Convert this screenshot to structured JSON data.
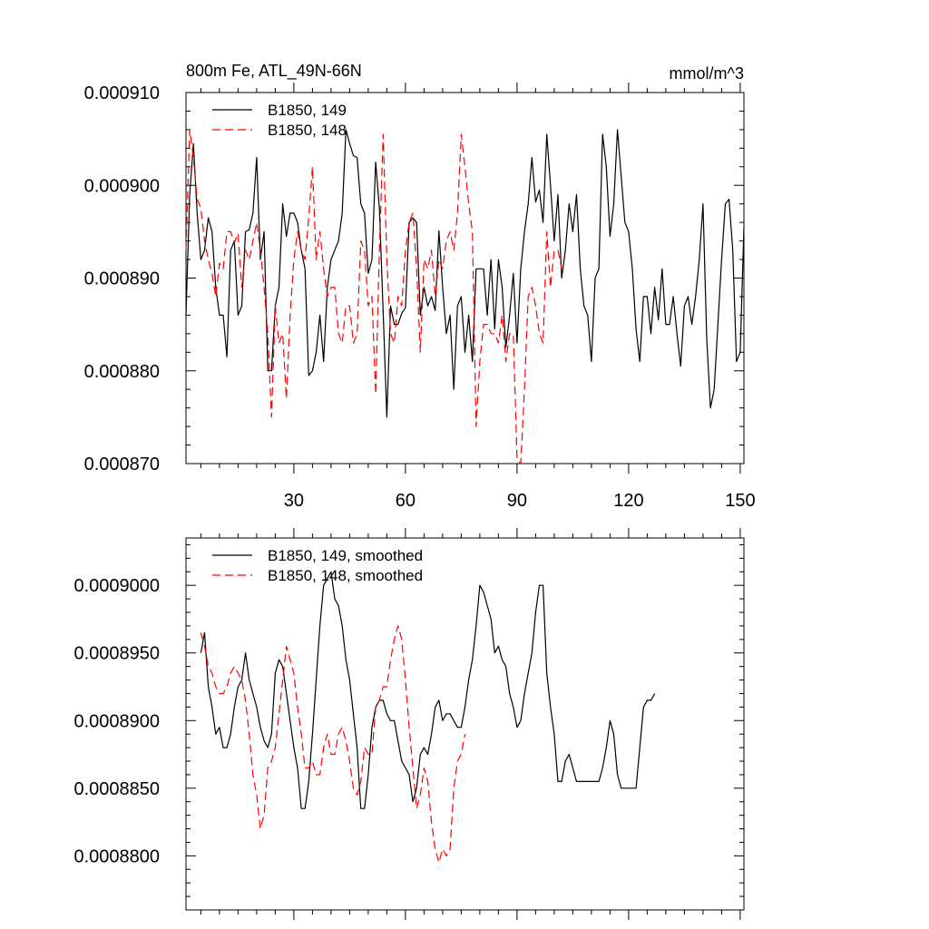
{
  "colors": {
    "background": "#ffffff",
    "axis": "#000000",
    "series_black": "#000000",
    "series_red": "#ff0000"
  },
  "chart_data": [
    {
      "type": "line",
      "title": "800m Fe, ATL_49N-66N",
      "units": "mmol/m^3",
      "xlim": [
        1,
        151
      ],
      "ylim": [
        0.00087,
        0.00091
      ],
      "x_ticks": [
        30,
        60,
        90,
        120,
        150
      ],
      "x_tick_labels": [
        "30",
        "60",
        "90",
        "120",
        "150"
      ],
      "y_ticks": [
        0.00087,
        0.00088,
        0.00089,
        0.0009,
        0.00091
      ],
      "y_tick_labels": [
        "0.000870",
        "0.000880",
        "0.000890",
        "0.000900",
        "0.000910"
      ],
      "legend_position": "top-left",
      "series": [
        {
          "name": "B1850, 149",
          "color": "#000000",
          "dash": "solid",
          "x_start": 1,
          "values": [
            0.000886,
            0.000899,
            0.0009045,
            0.000897,
            0.000892,
            0.000893,
            0.0008965,
            0.000895,
            0.000889,
            0.000886,
            0.000886,
            0.0008815,
            0.000893,
            0.000894,
            0.000886,
            0.000887,
            0.000895,
            0.0008952,
            0.000897,
            0.000903,
            0.000892,
            0.000895,
            0.00088,
            0.00088,
            0.000887,
            0.000889,
            0.000898,
            0.0008945,
            0.000897,
            0.000897,
            0.000896,
            0.000893,
            0.000891,
            0.0008795,
            0.00088,
            0.000882,
            0.000886,
            0.000881,
            0.000889,
            0.000892,
            0.000893,
            0.000894,
            0.000897,
            0.000906,
            0.0009045,
            0.0009032,
            0.000903,
            0.000898,
            0.000897,
            0.0008905,
            0.000892,
            0.0009025,
            0.0008975,
            0.0008865,
            0.000875,
            0.000887,
            0.000885,
            0.000885,
            0.0008862,
            0.0008868,
            0.000896,
            0.0008965,
            0.000896,
            0.000886,
            0.000889,
            0.000887,
            0.000888,
            0.0008865,
            0.0008951,
            0.000889,
            0.000884,
            0.000886,
            0.000878,
            0.000887,
            0.000888,
            0.000882,
            0.000886,
            0.000881,
            0.000891,
            0.000891,
            0.000891,
            0.000886,
            0.000892,
            0.0008845,
            0.000892,
            0.000889,
            0.0008825,
            0.000886,
            0.0008905,
            0.000883,
            0.000891,
            0.000895,
            0.000898,
            0.000903,
            0.0008982,
            0.0008995,
            0.000896,
            0.0009055,
            0.0009,
            0.000894,
            0.000899,
            0.00089,
            0.000893,
            0.000898,
            0.000895,
            0.000899,
            0.000891,
            0.000887,
            0.000886,
            0.000881,
            0.00089,
            0.000891,
            0.0009055,
            0.000902,
            0.0008945,
            0.000898,
            0.000906,
            0.000901,
            0.000896,
            0.000895,
            0.000891,
            0.0008845,
            0.000881,
            0.000888,
            0.000888,
            0.000884,
            0.000889,
            0.0008855,
            0.000891,
            0.000885,
            0.000885,
            0.000888,
            0.000884,
            0.0008805,
            0.000887,
            0.000888,
            0.000885,
            0.000888,
            0.000892,
            0.000898,
            0.0008835,
            0.000876,
            0.000878,
            0.000885,
            0.000892,
            0.000898,
            0.0008985,
            0.000893,
            0.000881,
            0.000882,
            0.0008955
          ]
        },
        {
          "name": "B1850, 148",
          "color": "#ff0000",
          "dash": "dashed",
          "x_start": 1,
          "values": [
            0.000893,
            0.000906,
            0.000903,
            0.0008985,
            0.0008975,
            0.000894,
            0.000892,
            0.0008905,
            0.000888,
            0.0008916,
            0.000891,
            0.000895,
            0.000895,
            0.0008938,
            0.0008948,
            0.000889,
            0.000893,
            0.000892,
            0.000894,
            0.000896,
            0.000893,
            0.000889,
            0.000884,
            0.000875,
            0.000887,
            0.000883,
            0.000884,
            0.000877,
            0.000886,
            0.000892,
            0.000895,
            0.000893,
            0.000892,
            0.0008965,
            0.000902,
            0.000892,
            0.000895,
            0.000891,
            0.000888,
            0.000889,
            0.000889,
            0.000884,
            0.000883,
            0.000887,
            0.000887,
            0.000883,
            0.000884,
            0.000894,
            0.000893,
            0.000887,
            0.000888,
            0.0008775,
            0.000893,
            0.0009055,
            0.000892,
            0.000884,
            0.000883,
            0.000888,
            0.000887,
            0.000893,
            0.000896,
            0.000897,
            0.000891,
            0.000882,
            0.000892,
            0.000891,
            0.000893,
            0.000888,
            0.000892,
            0.000891,
            0.000894,
            0.000895,
            0.000893,
            0.000897,
            0.0009055,
            0.000902,
            0.000898,
            0.000895,
            0.000874,
            0.000881,
            0.000885,
            0.000885,
            0.000884,
            0.000884,
            0.000883,
            0.000886,
            0.000881,
            0.000884,
            0.000884,
            0.0008705,
            0.00087,
            0.000878,
            0.000888,
            0.000889,
            0.000887,
            0.000884,
            0.000883,
            0.000895,
            0.000889,
            0.000893,
            0.000893,
            0.000891
          ]
        }
      ]
    },
    {
      "type": "line",
      "xlim": [
        1,
        151
      ],
      "ylim": [
        0.000876,
        0.0009035
      ],
      "x_ticks": [
        30,
        60,
        90,
        120,
        150
      ],
      "y_ticks": [
        0.00088,
        0.000885,
        0.00089,
        0.000895,
        0.0009
      ],
      "y_tick_labels": [
        "0.0008800",
        "0.0008850",
        "0.0008900",
        "0.0008950",
        "0.0009000"
      ],
      "legend_position": "top-left",
      "series": [
        {
          "name": "B1850, 149, smoothed",
          "color": "#000000",
          "dash": "solid",
          "x_start": 5,
          "values": [
            0.000895,
            0.0008965,
            0.0008925,
            0.000891,
            0.000889,
            0.0008895,
            0.000888,
            0.000888,
            0.000889,
            0.000891,
            0.0008925,
            0.000893,
            0.000895,
            0.000893,
            0.000892,
            0.000891,
            0.0008895,
            0.0008885,
            0.000888,
            0.000889,
            0.0008935,
            0.0008945,
            0.000894,
            0.000892,
            0.00089,
            0.000888,
            0.0008865,
            0.0008835,
            0.0008835,
            0.0008855,
            0.000889,
            0.000893,
            0.000897,
            0.0009,
            0.0009005,
            0.000901,
            0.000899,
            0.0008985,
            0.000897,
            0.0008945,
            0.000893,
            0.0008905,
            0.000888,
            0.0008835,
            0.0008835,
            0.000886,
            0.0008895,
            0.000891,
            0.0008915,
            0.0008915,
            0.0008905,
            0.00089,
            0.00089,
            0.0008885,
            0.000887,
            0.0008865,
            0.000886,
            0.000884,
            0.000885,
            0.0008875,
            0.000888,
            0.0008875,
            0.000889,
            0.000891,
            0.0008915,
            0.00089,
            0.0008905,
            0.0008905,
            0.00089,
            0.0008895,
            0.0008895,
            0.000891,
            0.000893,
            0.0008945,
            0.000897,
            0.0009,
            0.0008995,
            0.0008985,
            0.0008975,
            0.000895,
            0.0008955,
            0.0008945,
            0.000894,
            0.000892,
            0.000891,
            0.0008895,
            0.00089,
            0.000892,
            0.0008935,
            0.000895,
            0.000898,
            0.0009,
            0.0009,
            0.0008935,
            0.000891,
            0.000889,
            0.0008855,
            0.0008855,
            0.000887,
            0.0008875,
            0.0008865,
            0.0008855,
            0.0008855,
            0.0008855,
            0.0008855,
            0.0008855,
            0.0008855,
            0.0008855,
            0.0008865,
            0.000888,
            0.00089,
            0.000889,
            0.000886,
            0.000885,
            0.000885,
            0.000885,
            0.000885,
            0.000885,
            0.000888,
            0.000891,
            0.0008915,
            0.0008915,
            0.000892
          ],
          "x_end": 122
        },
        {
          "name": "B1850, 148, smoothed",
          "color": "#ff0000",
          "dash": "dashed",
          "x_start": 5,
          "values": [
            0.0008965,
            0.0008955,
            0.000894,
            0.0008935,
            0.0008925,
            0.000892,
            0.000892,
            0.0008925,
            0.0008935,
            0.000894,
            0.0008935,
            0.000893,
            0.0008915,
            0.000889,
            0.000886,
            0.0008845,
            0.000882,
            0.000883,
            0.0008865,
            0.000887,
            0.000888,
            0.0008905,
            0.000893,
            0.0008955,
            0.0008945,
            0.0008935,
            0.000891,
            0.000889,
            0.0008865,
            0.0008865,
            0.000887,
            0.000886,
            0.000886,
            0.000888,
            0.000889,
            0.0008875,
            0.0008875,
            0.000889,
            0.0008895,
            0.0008885,
            0.000887,
            0.000885,
            0.0008845,
            0.0008855,
            0.000888,
            0.0008875,
            0.0008875,
            0.000891,
            0.0008915,
            0.0008925,
            0.0008925,
            0.0008945,
            0.000896,
            0.000897,
            0.000896,
            0.000893,
            0.0008895,
            0.0008865,
            0.0008835,
            0.0008845,
            0.0008865,
            0.0008855,
            0.0008825,
            0.0008805,
            0.0008795,
            0.0008805,
            0.00088,
            0.0008805,
            0.000885,
            0.000887,
            0.0008875,
            0.000889
          ]
        }
      ]
    }
  ]
}
